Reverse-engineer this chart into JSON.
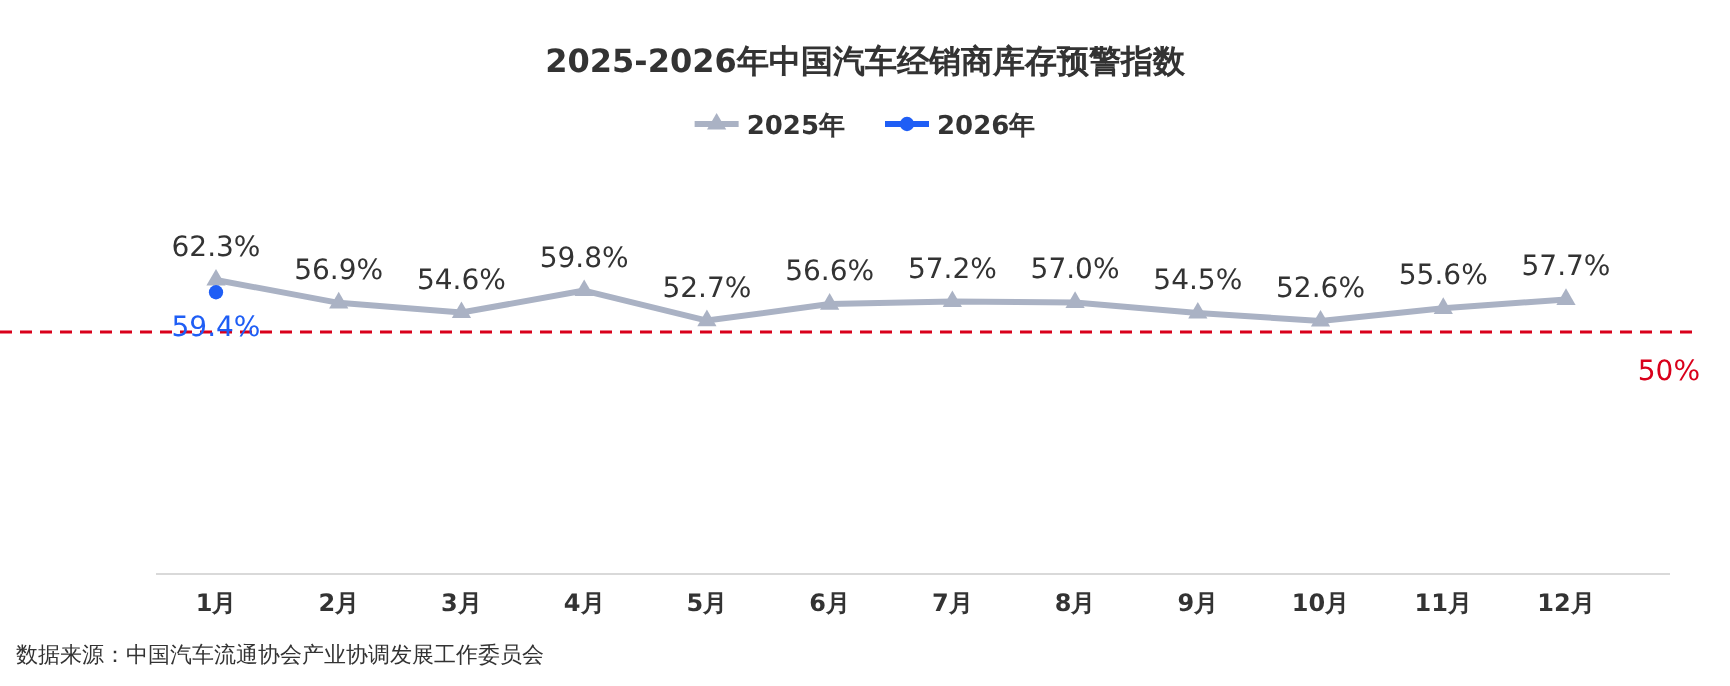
{
  "chart_data": {
    "type": "line",
    "title": "2025-2026年中国汽车经销商库存预警指数",
    "categories": [
      "1月",
      "2月",
      "3月",
      "4月",
      "5月",
      "6月",
      "7月",
      "8月",
      "9月",
      "10月",
      "11月",
      "12月"
    ],
    "series": [
      {
        "name": "2025年",
        "color": "#aab2c4",
        "marker": "triangle",
        "values": [
          62.3,
          56.9,
          54.6,
          59.8,
          52.7,
          56.6,
          57.2,
          57.0,
          54.5,
          52.6,
          55.6,
          57.7
        ],
        "value_labels": [
          "62.3%",
          "56.9%",
          "54.6%",
          "59.8%",
          "52.7%",
          "56.6%",
          "57.2%",
          "57.0%",
          "54.5%",
          "52.6%",
          "55.6%",
          "57.7%"
        ]
      },
      {
        "name": "2026年",
        "color": "#1f5ef5",
        "marker": "circle",
        "values": [
          59.4,
          null,
          null,
          null,
          null,
          null,
          null,
          null,
          null,
          null,
          null,
          null
        ],
        "value_labels": [
          "59.4%",
          null,
          null,
          null,
          null,
          null,
          null,
          null,
          null,
          null,
          null,
          null
        ]
      }
    ],
    "legend": "top",
    "ref_lines": [
      {
        "axis": "y",
        "value": 50,
        "label": "50%",
        "color": "#d9001b",
        "line_style": "dashed"
      }
    ],
    "annotations": [
      "数据来源：中国汽车流通协会产业协调发展工作委员会"
    ]
  }
}
